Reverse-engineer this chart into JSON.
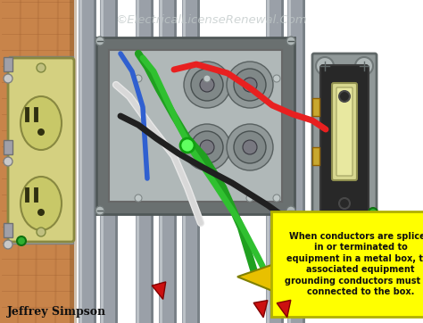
{
  "watermark": "©ElectricalLicenseRenewal.Com",
  "caption": "When conductors are spliced\nin or terminated to\nequipment in a metal box, the\nassociated equipment\ngrounding conductors must be\nconnected to the box.",
  "author": "Jeffrey Simpson",
  "bg_color": "#ffffff",
  "wood_color": "#c8844a",
  "wood_grain": "#a06030",
  "conduit_light": "#c8cdd2",
  "conduit_mid": "#9aa0a8",
  "conduit_dark": "#6a7278",
  "box_outer": "#808888",
  "box_frame": "#6a7070",
  "box_inner_bg": "#9aa0a0",
  "box_recess": "#b0b8b8",
  "knockout_outer": "#909898",
  "knockout_mid": "#808888",
  "knockout_center": "#787880",
  "wire_red": "#e82020",
  "wire_black": "#202020",
  "wire_white": "#d8d8d8",
  "wire_green": "#20a020",
  "wire_green2": "#30c030",
  "wire_blue": "#3060d0",
  "outlet_body": "#d4d080",
  "outlet_face": "#c8c870",
  "outlet_edge": "#888840",
  "outlet_slot": "#303010",
  "switch_plate": "#909898",
  "switch_body": "#282828",
  "switch_toggle": "#d8d890",
  "switch_toggle_inner": "#e8e8a0",
  "screw_color": "#b0b8b8",
  "screw_edge": "#707878",
  "green_screw": "#30b030",
  "green_dot": "#40ff40",
  "note_bg": "#ffff00",
  "note_border": "#b0b000",
  "arrow_yellow": "#e8c000",
  "arrow_red": "#cc1010",
  "text_dark": "#101010",
  "text_gray": "#a0a8a8"
}
